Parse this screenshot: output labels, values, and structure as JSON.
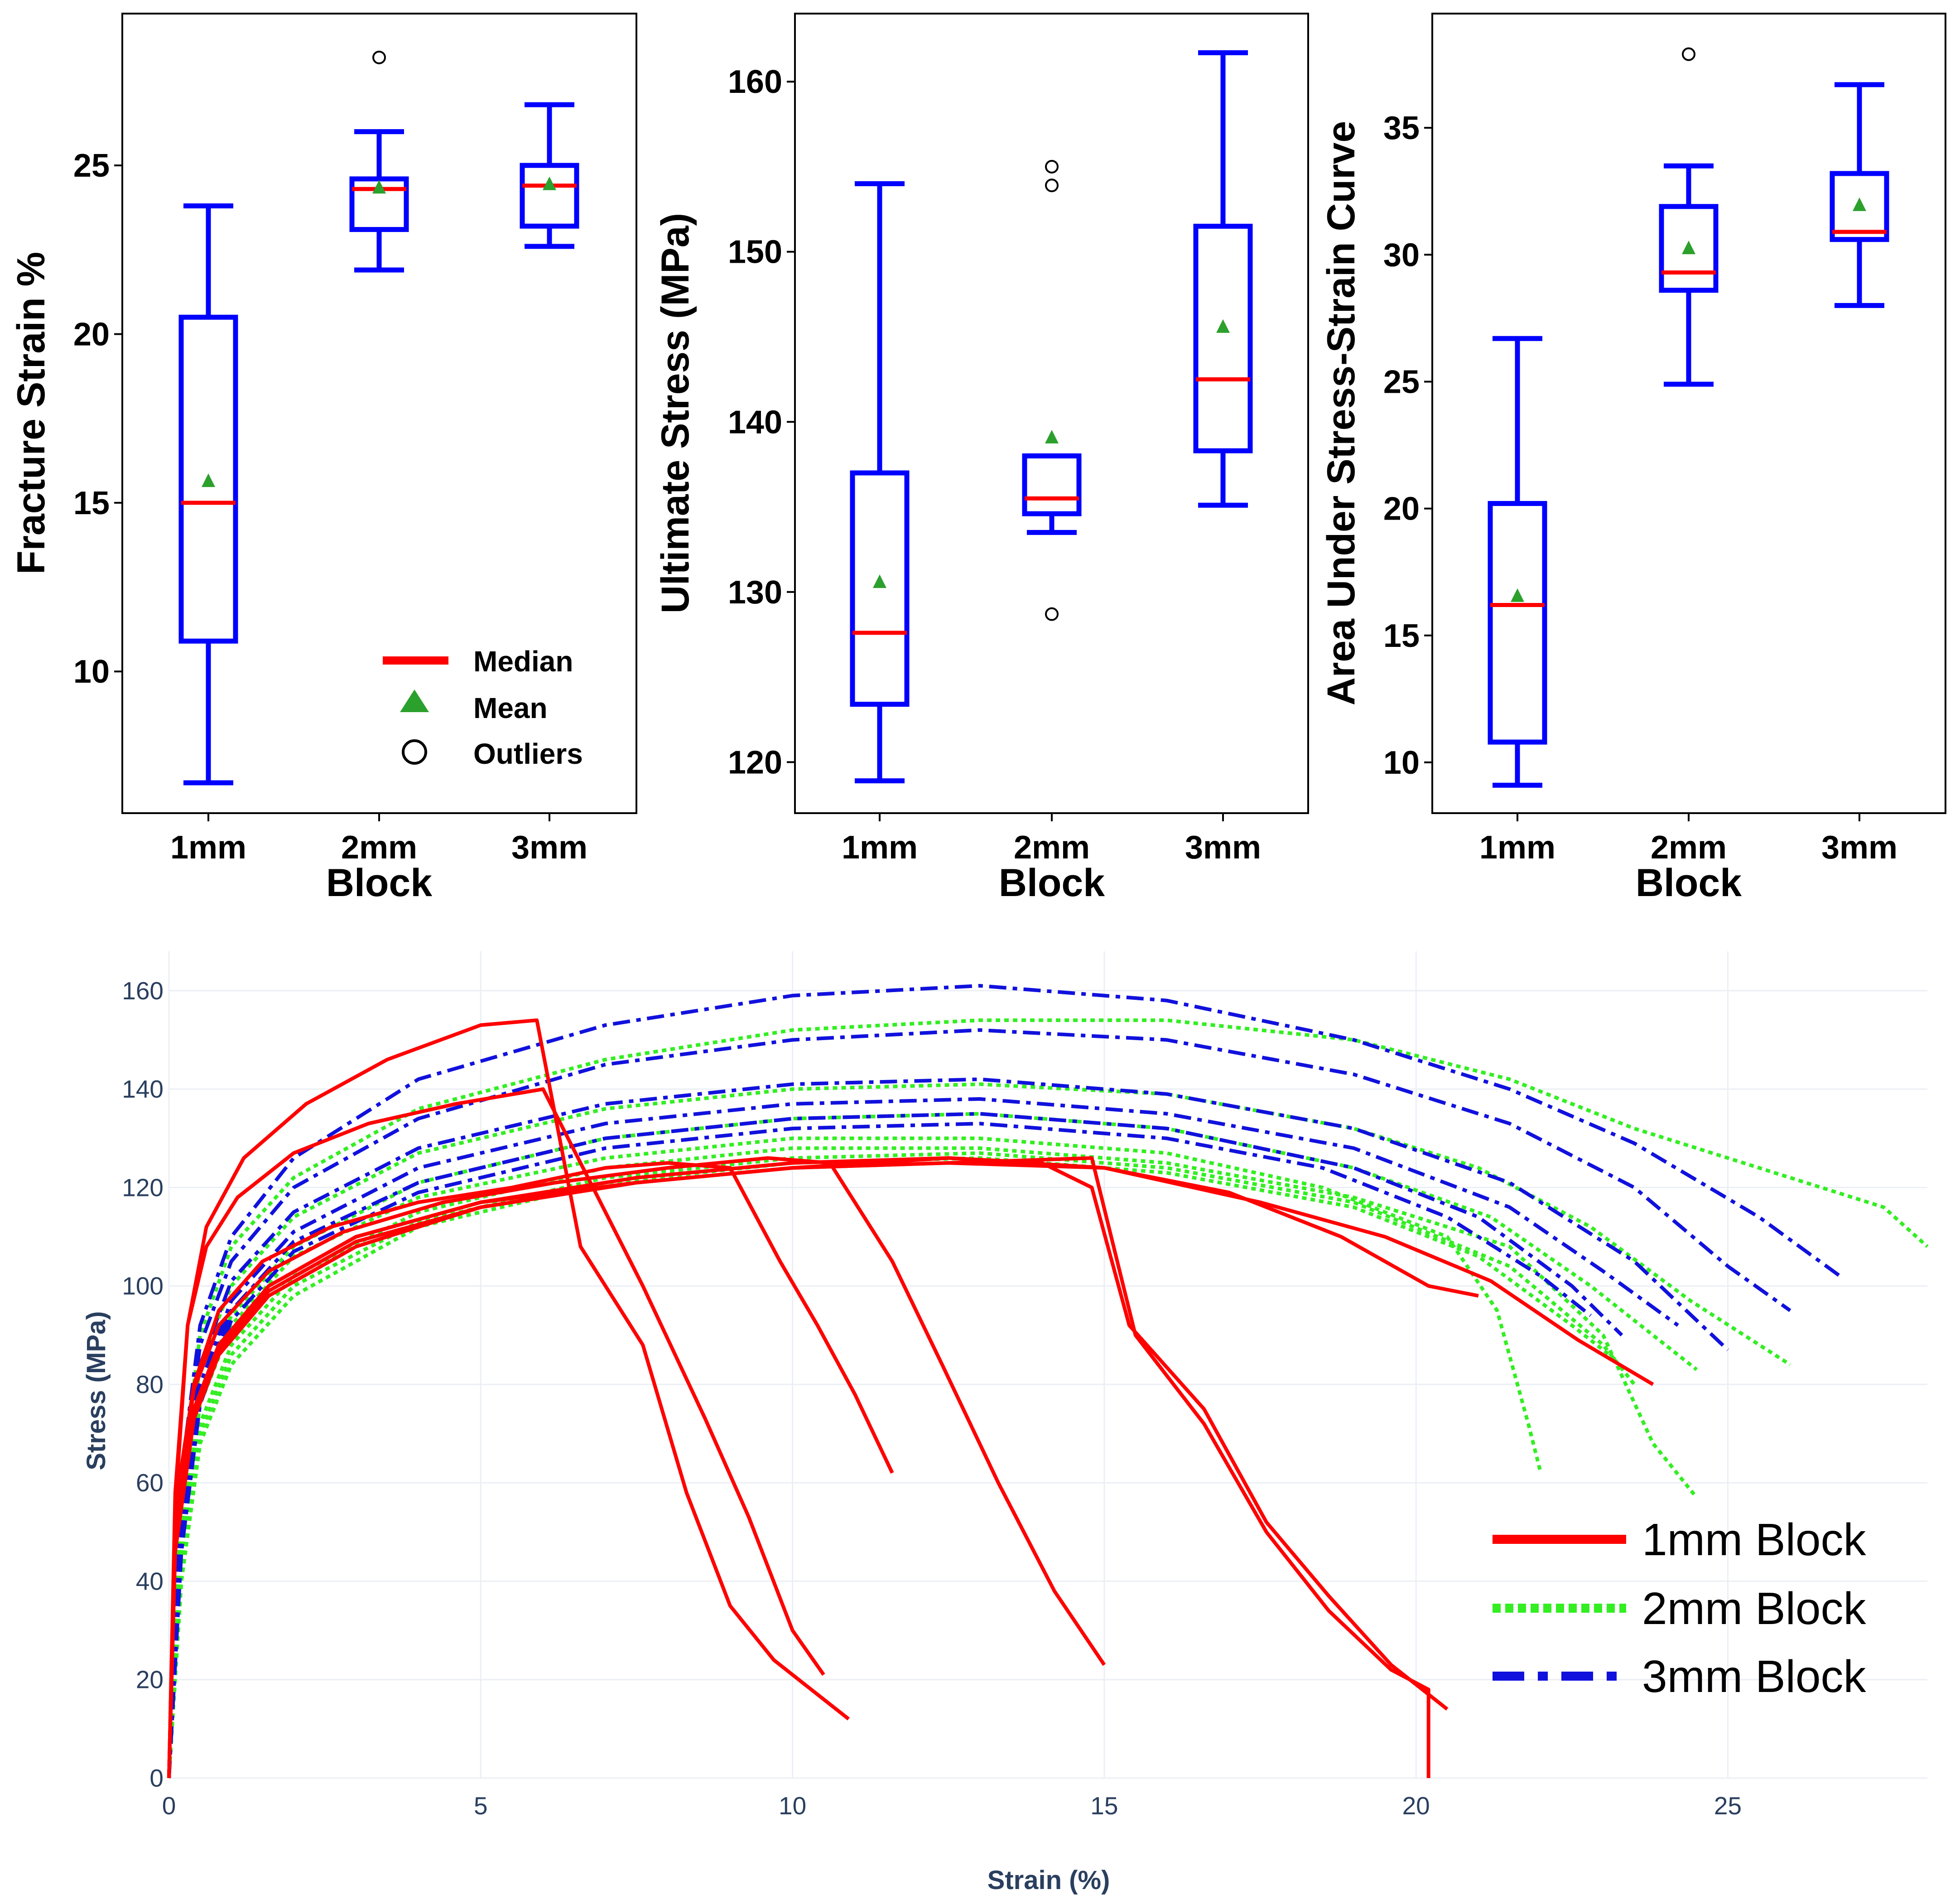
{
  "colors": {
    "box": "#0000ff",
    "median": "#ff0000",
    "mean": "#2ca02c",
    "outlier": "#000000",
    "series_1mm": "#ff0000",
    "series_2mm": "#33ee22",
    "series_3mm": "#1111dd",
    "grid": "#ebeff5",
    "axis_text": "#2a3f5f"
  },
  "box_legend": {
    "median": "Median",
    "mean": "Mean",
    "outliers": "Outliers"
  },
  "stress_legend": {
    "s1": "1mm Block",
    "s2": "2mm Block",
    "s3": "3mm Block"
  },
  "chart_data": [
    {
      "type": "box",
      "title": "",
      "xlabel": "Block",
      "ylabel": "Fracture Strain %",
      "categories": [
        "1mm",
        "2mm",
        "3mm"
      ],
      "ylim": [
        5.8,
        29.5
      ],
      "yticks": [
        10,
        15,
        20,
        25
      ],
      "ytick_labels": [
        "10",
        "15",
        "20",
        "25"
      ],
      "boxes": [
        {
          "min": 6.7,
          "q1": 10.9,
          "median": 15.0,
          "q3": 20.5,
          "max": 23.8,
          "mean": 15.6,
          "outliers": []
        },
        {
          "min": 21.9,
          "q1": 23.1,
          "median": 24.3,
          "q3": 24.6,
          "max": 26.0,
          "mean": 24.3,
          "outliers": [
            28.2
          ]
        },
        {
          "min": 22.6,
          "q1": 23.2,
          "median": 24.4,
          "q3": 25.0,
          "max": 26.8,
          "mean": 24.4,
          "outliers": []
        }
      ]
    },
    {
      "type": "box",
      "title": "",
      "xlabel": "Block",
      "ylabel": "Ultimate Stress (MPa)",
      "categories": [
        "1mm",
        "2mm",
        "3mm"
      ],
      "ylim": [
        117.0,
        164.0
      ],
      "yticks": [
        120,
        130,
        140,
        150,
        160
      ],
      "ytick_labels": [
        "120",
        "130",
        "140",
        "150",
        "160"
      ],
      "boxes": [
        {
          "min": 118.9,
          "q1": 123.4,
          "median": 127.6,
          "q3": 137.0,
          "max": 154.0,
          "mean": 130.5,
          "outliers": []
        },
        {
          "min": 133.5,
          "q1": 134.6,
          "median": 135.5,
          "q3": 138.0,
          "max": 138.0,
          "mean": 139.0,
          "outliers": [
            155.0,
            153.9,
            128.7
          ]
        },
        {
          "min": 135.1,
          "q1": 138.3,
          "median": 142.5,
          "q3": 151.5,
          "max": 161.7,
          "mean": 145.5,
          "outliers": []
        }
      ]
    },
    {
      "type": "box",
      "title": "",
      "xlabel": "Block",
      "ylabel": "Area Under Stress-Strain Curve",
      "categories": [
        "1mm",
        "2mm",
        "3mm"
      ],
      "ylim": [
        8.0,
        39.5
      ],
      "yticks": [
        10,
        15,
        20,
        25,
        30,
        35
      ],
      "ytick_labels": [
        "10",
        "15",
        "20",
        "25",
        "30",
        "35"
      ],
      "boxes": [
        {
          "min": 9.1,
          "q1": 10.8,
          "median": 16.2,
          "q3": 20.2,
          "max": 26.7,
          "mean": 16.5,
          "outliers": []
        },
        {
          "min": 24.9,
          "q1": 28.6,
          "median": 29.3,
          "q3": 31.9,
          "max": 33.5,
          "mean": 30.2,
          "outliers": [
            37.9
          ]
        },
        {
          "min": 28.0,
          "q1": 30.6,
          "median": 30.9,
          "q3": 33.2,
          "max": 36.7,
          "mean": 31.9,
          "outliers": []
        }
      ]
    },
    {
      "type": "line",
      "title": "",
      "xlabel": "Strain (%)",
      "ylabel": "Stress (MPa)",
      "xlim": [
        0,
        28.2
      ],
      "ylim": [
        0,
        168
      ],
      "xticks": [
        0,
        5,
        10,
        15,
        20,
        25
      ],
      "xtick_labels": [
        "0",
        "5",
        "10",
        "15",
        "20",
        "25"
      ],
      "yticks": [
        0,
        20,
        40,
        60,
        80,
        100,
        120,
        140,
        160
      ],
      "ytick_labels": [
        "0",
        "20",
        "40",
        "60",
        "80",
        "100",
        "120",
        "140",
        "160"
      ],
      "grid": true,
      "legend_position": "bottom-right",
      "series": [
        {
          "name": "1mm Block",
          "group": "1mm",
          "style": "solid",
          "x": [
            0,
            0.1,
            0.3,
            0.6,
            1.2,
            2.2,
            3.5,
            5.0,
            5.9,
            6.6,
            7.6,
            8.3,
            9.0,
            9.7,
            10.5,
            10.9
          ],
          "y": [
            0,
            55,
            92,
            112,
            126,
            137,
            146,
            153,
            154,
            108,
            88,
            58,
            35,
            24,
            16,
            12
          ]
        },
        {
          "name": "1mm Block",
          "group": "1mm",
          "style": "solid",
          "x": [
            0,
            0.1,
            0.3,
            0.6,
            1.1,
            2.0,
            3.2,
            4.6,
            6.0,
            6.6,
            7.6,
            8.6,
            9.3,
            10.0,
            10.5
          ],
          "y": [
            0,
            58,
            92,
            108,
            118,
            127,
            133,
            137,
            140,
            125,
            100,
            73,
            53,
            30,
            21
          ]
        },
        {
          "name": "1mm Block",
          "group": "1mm",
          "style": "solid",
          "x": [
            0,
            0.1,
            0.4,
            0.8,
            1.5,
            2.6,
            4.0,
            5.5,
            7.0,
            8.0,
            9.0,
            9.8,
            10.4,
            11.0,
            11.6
          ],
          "y": [
            0,
            55,
            80,
            95,
            105,
            112,
            117,
            120,
            124,
            125,
            124,
            105,
            92,
            78,
            62
          ]
        },
        {
          "name": "1mm Block",
          "group": "1mm",
          "style": "solid",
          "x": [
            0,
            0.1,
            0.4,
            0.8,
            1.6,
            2.8,
            4.4,
            6.2,
            8.0,
            9.6,
            10.6,
            11.6,
            12.4,
            13.3,
            14.2,
            15.0
          ],
          "y": [
            0,
            52,
            79,
            92,
            103,
            111,
            117,
            121,
            124,
            126,
            125,
            105,
            84,
            60,
            38,
            23
          ]
        },
        {
          "name": "1mm Block",
          "group": "1mm",
          "style": "solid",
          "x": [
            0,
            0.1,
            0.4,
            0.8,
            1.6,
            3.0,
            5.0,
            7.5,
            10.0,
            12.5,
            14.0,
            14.8,
            15.4,
            16.6,
            17.6,
            18.6,
            19.6,
            20.5
          ],
          "y": [
            0,
            50,
            75,
            88,
            100,
            110,
            117,
            122,
            125,
            126,
            125,
            120,
            92,
            75,
            52,
            37,
            23,
            14
          ]
        },
        {
          "name": "1mm Block",
          "group": "1mm",
          "style": "solid",
          "x": [
            0,
            0.1,
            0.4,
            0.8,
            1.6,
            3.0,
            5.0,
            7.5,
            10.0,
            12.5,
            14.8,
            15.5,
            16.6,
            17.6,
            18.6,
            19.6,
            20.2,
            20.2
          ],
          "y": [
            0,
            50,
            75,
            88,
            100,
            110,
            117,
            121,
            124,
            125,
            126,
            90,
            72,
            50,
            34,
            22,
            18,
            0
          ]
        },
        {
          "name": "1mm Block",
          "group": "1mm",
          "style": "solid",
          "x": [
            0,
            0.1,
            0.4,
            0.8,
            1.6,
            3.0,
            5.0,
            7.5,
            10.0,
            12.5,
            15.0,
            17.0,
            18.8,
            20.2,
            21.0
          ],
          "y": [
            0,
            48,
            74,
            87,
            99,
            109,
            116,
            121,
            124,
            125,
            124,
            119,
            110,
            100,
            98
          ]
        },
        {
          "name": "1mm Block",
          "group": "1mm",
          "style": "solid",
          "x": [
            0,
            0.1,
            0.4,
            0.8,
            1.6,
            3.0,
            5.0,
            7.5,
            10.0,
            12.5,
            15.0,
            17.5,
            19.5,
            21.2,
            22.6,
            23.8
          ],
          "y": [
            0,
            46,
            73,
            86,
            98,
            108,
            116,
            121,
            124,
            126,
            124,
            117,
            110,
            101,
            89,
            80
          ]
        },
        {
          "name": "2mm Block",
          "group": "2mm",
          "style": "dotted",
          "x": [
            0,
            0.2,
            0.5,
            1.0,
            2.0,
            4.0,
            7.0,
            10.0,
            13.0,
            16.0,
            19.0,
            21.5,
            23.5,
            25.5,
            27.5,
            28.2
          ],
          "y": [
            0,
            60,
            90,
            108,
            122,
            136,
            146,
            152,
            154,
            154,
            150,
            142,
            132,
            124,
            116,
            108
          ]
        },
        {
          "name": "2mm Block",
          "group": "2mm",
          "style": "dotted",
          "x": [
            0,
            0.2,
            0.5,
            1.0,
            2.0,
            4.0,
            7.0,
            10.0,
            13.0,
            16.0,
            19.0,
            21.0,
            22.8,
            24.4,
            26.0
          ],
          "y": [
            0,
            55,
            84,
            100,
            114,
            127,
            136,
            140,
            141,
            139,
            132,
            124,
            112,
            97,
            84
          ]
        },
        {
          "name": "2mm Block",
          "group": "2mm",
          "style": "dotted",
          "x": [
            0,
            0.2,
            0.5,
            1.0,
            2.0,
            4.0,
            7.0,
            10.0,
            13.0,
            16.0,
            19.0,
            21.2,
            22.8,
            24.0,
            24.5
          ],
          "y": [
            0,
            50,
            78,
            94,
            108,
            121,
            130,
            134,
            135,
            132,
            124,
            114,
            100,
            88,
            83
          ]
        },
        {
          "name": "2mm Block",
          "group": "2mm",
          "style": "dotted",
          "x": [
            0,
            0.2,
            0.5,
            1.0,
            2.0,
            4.0,
            7.0,
            10.0,
            13.0,
            16.0,
            18.5,
            20.5,
            21.3,
            21.8,
            22.0
          ],
          "y": [
            0,
            48,
            76,
            92,
            106,
            118,
            126,
            130,
            130,
            127,
            120,
            110,
            95,
            72,
            62
          ]
        },
        {
          "name": "2mm Block",
          "group": "2mm",
          "style": "dotted",
          "x": [
            0,
            0.2,
            0.5,
            1.0,
            2.0,
            4.0,
            7.0,
            10.0,
            13.0,
            16.0,
            19.0,
            21.5,
            23.0,
            23.8,
            24.5
          ],
          "y": [
            0,
            45,
            72,
            88,
            102,
            115,
            124,
            128,
            128,
            125,
            118,
            108,
            90,
            68,
            57
          ]
        },
        {
          "name": "2mm Block",
          "group": "2mm",
          "style": "dotted",
          "x": [
            0,
            0.2,
            0.5,
            1.0,
            2.0,
            4.0,
            7.0,
            10.0,
            13.0,
            16.0,
            19.0,
            21.5,
            23.0,
            23.5
          ],
          "y": [
            0,
            42,
            70,
            86,
            100,
            113,
            122,
            126,
            127,
            124,
            117,
            104,
            88,
            80
          ]
        },
        {
          "name": "2mm Block",
          "group": "2mm",
          "style": "dotted",
          "x": [
            0,
            0.2,
            0.5,
            1.0,
            2.0,
            4.0,
            7.0,
            10.0,
            13.0,
            16.0,
            19.0,
            21.0,
            22.5,
            23.2
          ],
          "y": [
            0,
            40,
            68,
            84,
            98,
            112,
            121,
            125,
            126,
            123,
            116,
            106,
            92,
            85
          ]
        },
        {
          "name": "3mm Block",
          "group": "3mm",
          "style": "dashdot",
          "x": [
            0,
            0.2,
            0.5,
            1.0,
            2.0,
            4.0,
            7.0,
            10.0,
            13.0,
            16.0,
            19.0,
            21.5,
            23.5,
            25.5,
            26.8
          ],
          "y": [
            0,
            62,
            92,
            110,
            126,
            142,
            153,
            159,
            161,
            158,
            150,
            140,
            129,
            114,
            102
          ]
        },
        {
          "name": "3mm Block",
          "group": "3mm",
          "style": "dashdot",
          "x": [
            0,
            0.2,
            0.5,
            1.0,
            2.0,
            4.0,
            7.0,
            10.0,
            13.0,
            16.0,
            19.0,
            21.5,
            23.5,
            25.0,
            26.0
          ],
          "y": [
            0,
            58,
            88,
            105,
            120,
            134,
            145,
            150,
            152,
            150,
            143,
            133,
            120,
            104,
            95
          ]
        },
        {
          "name": "3mm Block",
          "group": "3mm",
          "style": "dashdot",
          "x": [
            0,
            0.2,
            0.5,
            1.0,
            2.0,
            4.0,
            7.0,
            10.0,
            13.0,
            16.0,
            19.0,
            21.5,
            23.5,
            25.0
          ],
          "y": [
            0,
            54,
            84,
            101,
            115,
            128,
            137,
            141,
            142,
            139,
            132,
            121,
            105,
            87
          ]
        },
        {
          "name": "3mm Block",
          "group": "3mm",
          "style": "dashdot",
          "x": [
            0,
            0.2,
            0.5,
            1.0,
            2.0,
            4.0,
            7.0,
            10.0,
            13.0,
            16.0,
            19.0,
            21.5,
            23.0,
            24.2
          ],
          "y": [
            0,
            52,
            80,
            97,
            111,
            124,
            133,
            137,
            138,
            135,
            128,
            116,
            103,
            92
          ]
        },
        {
          "name": "3mm Block",
          "group": "3mm",
          "style": "dashdot",
          "x": [
            0,
            0.2,
            0.5,
            1.0,
            2.0,
            4.0,
            7.0,
            10.0,
            13.0,
            16.0,
            19.0,
            21.0,
            22.5,
            23.3
          ],
          "y": [
            0,
            48,
            78,
            95,
            109,
            121,
            130,
            134,
            135,
            132,
            124,
            114,
            100,
            90
          ]
        },
        {
          "name": "3mm Block",
          "group": "3mm",
          "style": "dashdot",
          "x": [
            0,
            0.2,
            0.5,
            1.0,
            2.0,
            4.0,
            7.0,
            10.0,
            13.0,
            16.0,
            18.5,
            20.5,
            22.0,
            22.8
          ],
          "y": [
            0,
            46,
            76,
            93,
            107,
            119,
            128,
            132,
            133,
            130,
            124,
            114,
            102,
            94
          ]
        }
      ]
    }
  ]
}
